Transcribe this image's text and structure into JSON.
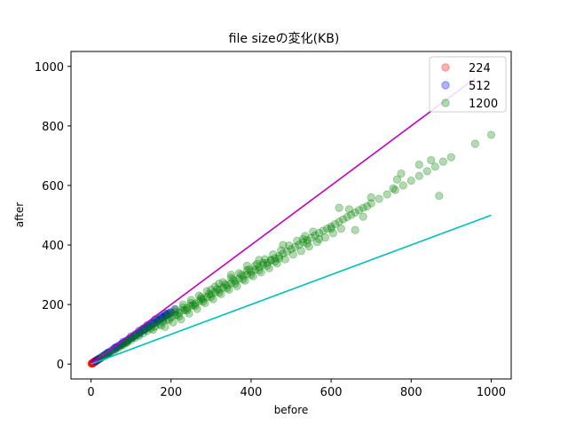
{
  "chart_data": {
    "type": "scatter",
    "title": "file sizeの変化(KB)",
    "xlabel": "before",
    "ylabel": "after",
    "xlim": [
      -50,
      1050
    ],
    "ylim": [
      -50,
      1050
    ],
    "xticks": [
      0,
      200,
      400,
      600,
      800,
      1000
    ],
    "yticks": [
      0,
      200,
      400,
      600,
      800,
      1000
    ],
    "grid": false,
    "legend_position": "top-right",
    "series": [
      {
        "name": "224",
        "color": "#ff0000",
        "points": [
          [
            1,
            1
          ],
          [
            2,
            2
          ],
          [
            3,
            2
          ],
          [
            4,
            3
          ],
          [
            5,
            4
          ],
          [
            6,
            5
          ],
          [
            7,
            6
          ],
          [
            8,
            7
          ],
          [
            9,
            8
          ],
          [
            10,
            8
          ],
          [
            11,
            9
          ],
          [
            12,
            10
          ],
          [
            13,
            11
          ],
          [
            14,
            12
          ],
          [
            15,
            13
          ],
          [
            16,
            14
          ],
          [
            17,
            15
          ],
          [
            18,
            15
          ],
          [
            19,
            16
          ],
          [
            20,
            17
          ],
          [
            3,
            3
          ],
          [
            5,
            5
          ],
          [
            7,
            7
          ],
          [
            9,
            9
          ],
          [
            11,
            10
          ],
          [
            13,
            12
          ],
          [
            15,
            14
          ],
          [
            4,
            2
          ],
          [
            6,
            4
          ],
          [
            8,
            6
          ]
        ]
      },
      {
        "name": "512",
        "color": "#0000ff",
        "points": [
          [
            10,
            9
          ],
          [
            15,
            13
          ],
          [
            20,
            18
          ],
          [
            25,
            22
          ],
          [
            30,
            27
          ],
          [
            35,
            31
          ],
          [
            40,
            35
          ],
          [
            45,
            40
          ],
          [
            50,
            44
          ],
          [
            55,
            49
          ],
          [
            60,
            53
          ],
          [
            65,
            57
          ],
          [
            70,
            62
          ],
          [
            75,
            66
          ],
          [
            80,
            70
          ],
          [
            85,
            75
          ],
          [
            90,
            79
          ],
          [
            95,
            83
          ],
          [
            100,
            88
          ],
          [
            105,
            92
          ],
          [
            110,
            96
          ],
          [
            115,
            101
          ],
          [
            120,
            105
          ],
          [
            125,
            110
          ],
          [
            130,
            114
          ],
          [
            135,
            118
          ],
          [
            140,
            122
          ],
          [
            145,
            127
          ],
          [
            150,
            131
          ],
          [
            155,
            136
          ],
          [
            160,
            140
          ],
          [
            165,
            144
          ],
          [
            170,
            149
          ],
          [
            175,
            153
          ],
          [
            180,
            157
          ],
          [
            185,
            162
          ],
          [
            190,
            166
          ],
          [
            195,
            170
          ],
          [
            200,
            174
          ],
          [
            210,
            183
          ],
          [
            22,
            19
          ],
          [
            33,
            29
          ],
          [
            44,
            38
          ],
          [
            66,
            58
          ],
          [
            77,
            67
          ],
          [
            88,
            77
          ],
          [
            99,
            86
          ],
          [
            111,
            97
          ],
          [
            122,
            107
          ],
          [
            133,
            116
          ],
          [
            144,
            126
          ],
          [
            156,
            137
          ],
          [
            168,
            147
          ],
          [
            178,
            155
          ],
          [
            188,
            164
          ],
          [
            198,
            173
          ],
          [
            160,
            150
          ],
          [
            175,
            160
          ],
          [
            185,
            170
          ],
          [
            140,
            130
          ],
          [
            120,
            112
          ],
          [
            100,
            93
          ],
          [
            80,
            74
          ],
          [
            60,
            55
          ],
          [
            40,
            37
          ]
        ]
      },
      {
        "name": "1200",
        "color": "#008000",
        "points": [
          [
            20,
            17
          ],
          [
            30,
            25
          ],
          [
            40,
            32
          ],
          [
            50,
            40
          ],
          [
            60,
            48
          ],
          [
            70,
            56
          ],
          [
            80,
            64
          ],
          [
            90,
            72
          ],
          [
            100,
            80
          ],
          [
            110,
            88
          ],
          [
            120,
            95
          ],
          [
            130,
            103
          ],
          [
            140,
            111
          ],
          [
            150,
            119
          ],
          [
            160,
            126
          ],
          [
            170,
            134
          ],
          [
            180,
            142
          ],
          [
            190,
            150
          ],
          [
            200,
            157
          ],
          [
            210,
            165
          ],
          [
            220,
            173
          ],
          [
            230,
            180
          ],
          [
            240,
            188
          ],
          [
            250,
            196
          ],
          [
            260,
            203
          ],
          [
            270,
            211
          ],
          [
            280,
            219
          ],
          [
            290,
            226
          ],
          [
            300,
            234
          ],
          [
            310,
            241
          ],
          [
            320,
            249
          ],
          [
            330,
            257
          ],
          [
            340,
            264
          ],
          [
            350,
            272
          ],
          [
            360,
            279
          ],
          [
            370,
            287
          ],
          [
            380,
            295
          ],
          [
            390,
            302
          ],
          [
            400,
            310
          ],
          [
            410,
            317
          ],
          [
            420,
            325
          ],
          [
            430,
            333
          ],
          [
            440,
            340
          ],
          [
            450,
            348
          ],
          [
            460,
            355
          ],
          [
            470,
            363
          ],
          [
            480,
            371
          ],
          [
            490,
            378
          ],
          [
            500,
            386
          ],
          [
            510,
            393
          ],
          [
            520,
            401
          ],
          [
            530,
            409
          ],
          [
            540,
            416
          ],
          [
            550,
            424
          ],
          [
            560,
            432
          ],
          [
            570,
            440
          ],
          [
            580,
            448
          ],
          [
            590,
            455
          ],
          [
            600,
            462
          ],
          [
            610,
            470
          ],
          [
            620,
            478
          ],
          [
            630,
            486
          ],
          [
            640,
            494
          ],
          [
            650,
            501
          ],
          [
            660,
            509
          ],
          [
            670,
            517
          ],
          [
            680,
            525
          ],
          [
            700,
            540
          ],
          [
            720,
            555
          ],
          [
            740,
            570
          ],
          [
            760,
            585
          ],
          [
            780,
            600
          ],
          [
            800,
            616
          ],
          [
            820,
            632
          ],
          [
            840,
            648
          ],
          [
            860,
            663
          ],
          [
            880,
            680
          ],
          [
            900,
            695
          ],
          [
            960,
            740
          ],
          [
            1000,
            770
          ],
          [
            870,
            565
          ],
          [
            850,
            685
          ],
          [
            820,
            670
          ],
          [
            765,
            620
          ],
          [
            775,
            640
          ],
          [
            755,
            590
          ],
          [
            700,
            560
          ],
          [
            690,
            530
          ],
          [
            680,
            495
          ],
          [
            660,
            450
          ],
          [
            645,
            520
          ],
          [
            620,
            525
          ],
          [
            600,
            455
          ],
          [
            570,
            420
          ],
          [
            555,
            445
          ],
          [
            540,
            405
          ],
          [
            530,
            420
          ],
          [
            480,
            400
          ],
          [
            420,
            350
          ],
          [
            390,
            330
          ],
          [
            350,
            300
          ],
          [
            320,
            270
          ],
          [
            300,
            250
          ],
          [
            275,
            225
          ],
          [
            250,
            205
          ],
          [
            230,
            190
          ],
          [
            210,
            175
          ],
          [
            195,
            165
          ],
          [
            180,
            150
          ],
          [
            165,
            140
          ],
          [
            150,
            125
          ],
          [
            135,
            115
          ],
          [
            120,
            100
          ],
          [
            105,
            90
          ],
          [
            90,
            75
          ],
          [
            75,
            62
          ],
          [
            60,
            50
          ],
          [
            45,
            38
          ],
          [
            35,
            28
          ],
          [
            25,
            20
          ],
          [
            220,
            160
          ],
          [
            240,
            180
          ],
          [
            260,
            195
          ],
          [
            280,
            210
          ],
          [
            300,
            225
          ],
          [
            320,
            240
          ],
          [
            340,
            255
          ],
          [
            360,
            270
          ],
          [
            380,
            285
          ],
          [
            400,
            300
          ],
          [
            420,
            315
          ],
          [
            440,
            330
          ],
          [
            460,
            345
          ],
          [
            470,
            355
          ],
          [
            450,
            350
          ],
          [
            430,
            340
          ],
          [
            410,
            330
          ],
          [
            390,
            315
          ],
          [
            370,
            305
          ],
          [
            350,
            290
          ],
          [
            330,
            275
          ],
          [
            310,
            260
          ],
          [
            290,
            245
          ],
          [
            270,
            230
          ],
          [
            250,
            215
          ],
          [
            230,
            200
          ],
          [
            210,
            185
          ],
          [
            190,
            170
          ],
          [
            170,
            155
          ],
          [
            150,
            135
          ],
          [
            130,
            120
          ],
          [
            110,
            100
          ],
          [
            95,
            85
          ],
          [
            85,
            70
          ],
          [
            155,
            115
          ],
          [
            175,
            130
          ],
          [
            195,
            148
          ],
          [
            215,
            165
          ],
          [
            235,
            182
          ],
          [
            255,
            198
          ],
          [
            275,
            218
          ],
          [
            295,
            236
          ],
          [
            315,
            252
          ],
          [
            335,
            268
          ],
          [
            355,
            284
          ],
          [
            375,
            300
          ],
          [
            395,
            318
          ],
          [
            415,
            336
          ],
          [
            435,
            352
          ],
          [
            455,
            368
          ],
          [
            475,
            382
          ],
          [
            495,
            398
          ],
          [
            515,
            414
          ],
          [
            535,
            430
          ],
          [
            205,
            140
          ],
          [
            225,
            150
          ],
          [
            185,
            125
          ],
          [
            245,
            170
          ],
          [
            265,
            185
          ],
          [
            285,
            205
          ],
          [
            305,
            218
          ],
          [
            325,
            235
          ],
          [
            345,
            250
          ],
          [
            365,
            262
          ],
          [
            385,
            280
          ],
          [
            405,
            295
          ],
          [
            425,
            308
          ],
          [
            445,
            322
          ],
          [
            465,
            338
          ],
          [
            485,
            352
          ],
          [
            505,
            368
          ],
          [
            525,
            380
          ],
          [
            545,
            395
          ],
          [
            565,
            410
          ],
          [
            585,
            425
          ],
          [
            605,
            440
          ],
          [
            625,
            455
          ]
        ]
      }
    ],
    "reference_lines": [
      {
        "color": "#bf00bf",
        "x": [
          0,
          960
        ],
        "y": [
          0,
          960
        ]
      },
      {
        "color": "#00bfbf",
        "x": [
          0,
          1000
        ],
        "y": [
          0,
          500
        ]
      }
    ]
  }
}
